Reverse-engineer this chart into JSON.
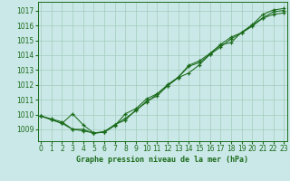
{
  "title": "Graphe pression niveau de la mer (hPa)",
  "bg_color": "#cbe8e8",
  "grid_color": "#a0ccbb",
  "line_color": "#1a6b1a",
  "x_ticks": [
    0,
    1,
    2,
    3,
    4,
    5,
    6,
    7,
    8,
    9,
    10,
    11,
    12,
    13,
    14,
    15,
    16,
    17,
    18,
    19,
    20,
    21,
    22,
    23
  ],
  "y_ticks": [
    1009,
    1010,
    1011,
    1012,
    1013,
    1014,
    1015,
    1016,
    1017
  ],
  "ylim": [
    1008.2,
    1017.6
  ],
  "xlim": [
    -0.3,
    23.3
  ],
  "series": [
    [
      1009.9,
      1009.7,
      1009.5,
      1009.0,
      1008.9,
      1008.75,
      1008.85,
      1009.3,
      1009.75,
      1010.25,
      1010.9,
      1011.25,
      1011.95,
      1012.5,
      1013.25,
      1013.5,
      1014.05,
      1014.55,
      1015.1,
      1015.5,
      1015.95,
      1016.5,
      1016.75,
      1016.85
    ],
    [
      1009.9,
      1009.65,
      1009.4,
      1010.05,
      1009.3,
      1008.75,
      1008.8,
      1009.25,
      1010.05,
      1010.4,
      1011.05,
      1011.4,
      1011.95,
      1012.48,
      1012.8,
      1013.35,
      1014.05,
      1014.7,
      1014.85,
      1015.55,
      1016.05,
      1016.75,
      1017.05,
      1017.15
    ],
    [
      1009.9,
      1009.65,
      1009.4,
      1009.0,
      1009.0,
      1008.73,
      1008.82,
      1009.32,
      1009.62,
      1010.32,
      1010.82,
      1011.38,
      1012.02,
      1012.52,
      1013.32,
      1013.62,
      1014.12,
      1014.72,
      1015.22,
      1015.52,
      1016.02,
      1016.52,
      1016.92,
      1017.02
    ]
  ],
  "tick_fontsize": 5.5,
  "label_fontsize": 6.0,
  "marker_size": 3,
  "linewidth": 0.75
}
